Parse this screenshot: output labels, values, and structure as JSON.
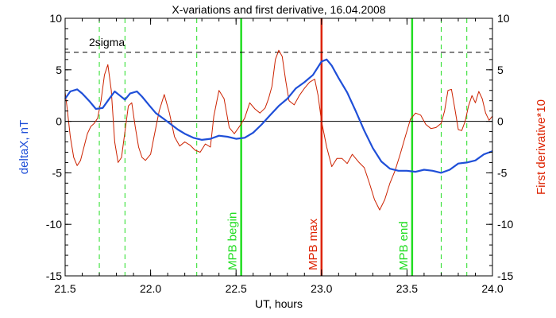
{
  "chart_data": {
    "type": "line",
    "title": "X-variations and first derivative, 16.04.2008",
    "xlabel": "UT, hours",
    "ylabel_left": "deltaX, nT",
    "ylabel_right": "First derivative*10",
    "xlim": [
      21.5,
      24.0
    ],
    "ylim_left": [
      -15,
      10
    ],
    "ylim_right": [
      -15,
      10
    ],
    "xticks": [
      "21.5",
      "22.0",
      "22.5",
      "23.0",
      "23.5",
      "24.0"
    ],
    "yticks_left": [
      "10",
      "5",
      "0",
      "-5",
      "-10",
      "-15"
    ],
    "yticks_right": [
      "10",
      "5",
      "0",
      "-5",
      "-10",
      "-15"
    ],
    "grid": false,
    "colors": {
      "deltaX": "#1f4fd8",
      "derivative": "#cc2200",
      "marker_green": "#22dd22",
      "marker_red": "#dd2200",
      "axes": "#000000"
    },
    "series": [
      {
        "key": "deltaX",
        "axis": "left",
        "x": [
          21.5,
          21.53,
          21.57,
          21.6,
          21.64,
          21.68,
          21.72,
          21.75,
          21.79,
          21.82,
          21.85,
          21.88,
          21.92,
          21.95,
          21.99,
          22.03,
          22.08,
          22.12,
          22.16,
          22.2,
          22.25,
          22.3,
          22.35,
          22.4,
          22.45,
          22.5,
          22.55,
          22.6,
          22.65,
          22.7,
          22.75,
          22.8,
          22.85,
          22.9,
          22.95,
          23.0,
          23.03,
          23.06,
          23.1,
          23.15,
          23.2,
          23.25,
          23.3,
          23.35,
          23.4,
          23.45,
          23.5,
          23.55,
          23.6,
          23.65,
          23.7,
          23.75,
          23.8,
          23.85,
          23.9,
          23.95,
          24.0
        ],
        "y": [
          2.2,
          2.9,
          3.1,
          2.7,
          2.0,
          1.2,
          1.3,
          2.0,
          2.9,
          2.5,
          2.1,
          2.7,
          2.9,
          2.4,
          1.6,
          0.8,
          0.2,
          -0.3,
          -0.8,
          -1.2,
          -1.6,
          -1.8,
          -1.7,
          -1.4,
          -1.5,
          -1.7,
          -1.6,
          -1.1,
          -0.3,
          0.6,
          1.5,
          2.2,
          3.2,
          3.8,
          4.5,
          5.8,
          6.0,
          5.4,
          4.2,
          2.8,
          1.0,
          -0.9,
          -2.6,
          -3.9,
          -4.6,
          -4.8,
          -4.8,
          -4.9,
          -4.7,
          -4.8,
          -5.0,
          -4.7,
          -4.1,
          -4.0,
          -3.8,
          -3.2,
          -2.9
        ]
      },
      {
        "key": "derivative",
        "axis": "right",
        "x": [
          21.5,
          21.51,
          21.53,
          21.55,
          21.57,
          21.59,
          21.61,
          21.63,
          21.65,
          21.67,
          21.69,
          21.71,
          21.73,
          21.75,
          21.77,
          21.79,
          21.81,
          21.83,
          21.85,
          21.87,
          21.89,
          21.91,
          21.93,
          21.95,
          21.97,
          22.0,
          22.02,
          22.05,
          22.08,
          22.11,
          22.14,
          22.17,
          22.2,
          22.23,
          22.26,
          22.29,
          22.32,
          22.35,
          22.37,
          22.4,
          22.43,
          22.46,
          22.49,
          22.52,
          22.55,
          22.58,
          22.61,
          22.64,
          22.67,
          22.69,
          22.71,
          22.73,
          22.75,
          22.77,
          22.79,
          22.81,
          22.84,
          22.87,
          22.9,
          22.93,
          22.96,
          22.98,
          23.0,
          23.03,
          23.06,
          23.09,
          23.12,
          23.15,
          23.18,
          23.2,
          23.22,
          23.25,
          23.28,
          23.31,
          23.34,
          23.37,
          23.4,
          23.43,
          23.46,
          23.49,
          23.52,
          23.55,
          23.58,
          23.61,
          23.64,
          23.67,
          23.7,
          23.72,
          23.74,
          23.76,
          23.78,
          23.8,
          23.82,
          23.84,
          23.86,
          23.88,
          23.9,
          23.92,
          23.94,
          23.96,
          23.98,
          24.0
        ],
        "y": [
          2.8,
          1.5,
          -1.5,
          -3.5,
          -4.3,
          -3.8,
          -2.5,
          -1.2,
          -0.5,
          -0.2,
          0.3,
          2.0,
          4.5,
          5.5,
          3.0,
          -2.0,
          -4.0,
          -3.5,
          -1.0,
          1.5,
          1.8,
          -0.5,
          -2.5,
          -3.5,
          -3.8,
          -3.2,
          -1.5,
          1.0,
          2.6,
          0.8,
          -1.5,
          -2.4,
          -2.0,
          -2.3,
          -2.8,
          -3.0,
          -2.2,
          -2.5,
          0.5,
          3.0,
          2.2,
          -0.6,
          -1.2,
          -0.5,
          0.3,
          1.8,
          1.2,
          0.8,
          1.3,
          2.2,
          3.4,
          6.0,
          6.9,
          6.3,
          4.0,
          2.0,
          1.6,
          2.5,
          3.2,
          3.8,
          4.1,
          2.5,
          0.0,
          -2.5,
          -4.4,
          -3.6,
          -3.6,
          -4.1,
          -3.2,
          -3.6,
          -4.0,
          -4.5,
          -6.0,
          -7.6,
          -8.6,
          -7.6,
          -6.0,
          -4.8,
          -3.2,
          -1.5,
          0.2,
          0.8,
          0.6,
          -0.3,
          -0.7,
          -0.6,
          -0.2,
          1.0,
          3.0,
          3.1,
          1.2,
          -0.8,
          -0.9,
          0.0,
          1.5,
          2.5,
          1.8,
          2.9,
          2.2,
          0.8,
          0.1,
          0.5
        ]
      }
    ],
    "threshold": {
      "label": "2sigma",
      "value": 6.7
    },
    "markers": [
      {
        "x": 21.7,
        "style": "green-dashed"
      },
      {
        "x": 21.85,
        "style": "green-dashed"
      },
      {
        "x": 22.27,
        "style": "green-dashed"
      },
      {
        "x": 22.53,
        "style": "green-solid",
        "label": "MPB begin"
      },
      {
        "x": 23.0,
        "style": "red-solid",
        "label": "MPB max"
      },
      {
        "x": 23.53,
        "style": "green-solid",
        "label": "MPB end"
      },
      {
        "x": 23.7,
        "style": "green-dashed"
      },
      {
        "x": 23.85,
        "style": "green-dashed"
      }
    ]
  }
}
